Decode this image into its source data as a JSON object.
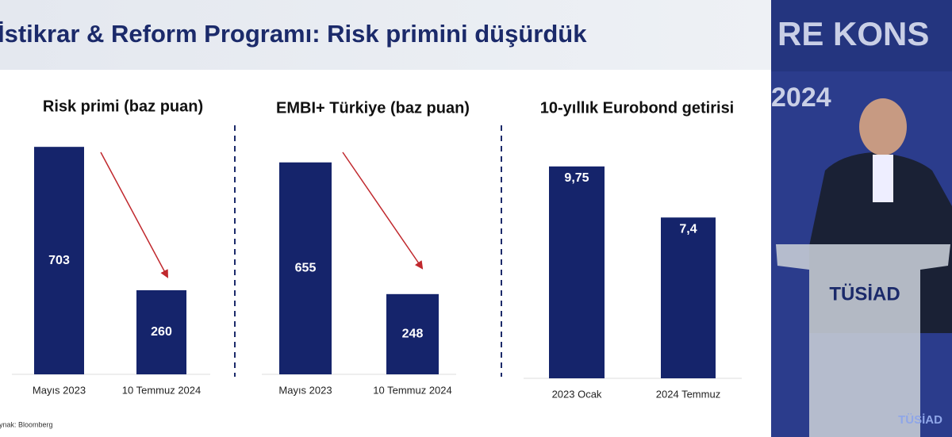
{
  "title": "İstikrar & Reform Programı: Risk primini düşürdük",
  "source": "Kaynak: Bloomberg",
  "backdrop": [
    "RE KONS",
    "2024"
  ],
  "podium": "TÜSİAD",
  "logo": "TÜSİAD",
  "chart_data": [
    {
      "type": "bar",
      "title": "Risk primi (baz puan)",
      "categories": [
        "Mayıs 2023",
        "10 Temmuz 2024"
      ],
      "values": [
        703,
        260
      ],
      "color": "#15246b"
    },
    {
      "type": "bar",
      "title": "EMBI+ Türkiye (baz puan)",
      "categories": [
        "Mayıs 2023",
        "10 Temmuz 2024"
      ],
      "values": [
        655,
        248
      ],
      "color": "#15246b"
    },
    {
      "type": "bar",
      "title": "10-yıllık Eurobond getirisi",
      "categories": [
        "2023 Ocak",
        "2024 Temmuz"
      ],
      "values": [
        9.75,
        7.4
      ],
      "value_labels": [
        "9,75",
        "7,4"
      ],
      "color": "#15246b"
    }
  ]
}
